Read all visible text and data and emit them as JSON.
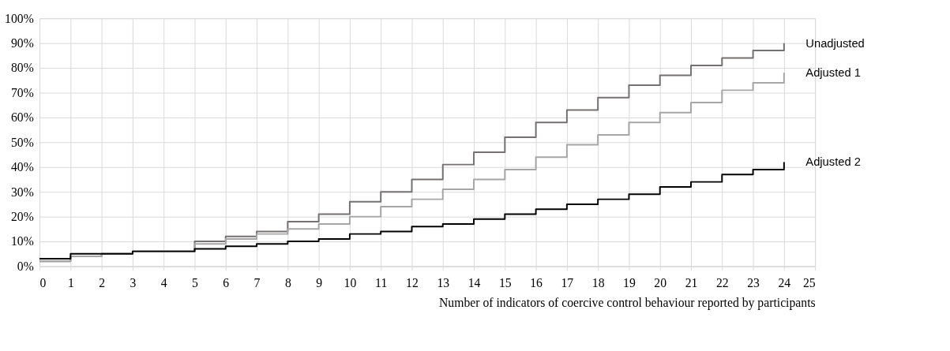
{
  "chart_data": {
    "type": "step",
    "xlabel": "Number of indicators of coercive control behaviour reported by participants",
    "x": [
      0,
      1,
      2,
      3,
      4,
      5,
      6,
      7,
      8,
      9,
      10,
      11,
      12,
      13,
      14,
      15,
      16,
      17,
      18,
      19,
      20,
      21,
      22,
      23,
      24
    ],
    "series": [
      {
        "name": "Unadjusted",
        "color": "#767171",
        "values": [
          2,
          4,
          5,
          6,
          6,
          10,
          12,
          14,
          18,
          21,
          26,
          30,
          35,
          41,
          46,
          52,
          58,
          63,
          68,
          73,
          77,
          81,
          84,
          87,
          90
        ]
      },
      {
        "name": "Adjusted 1",
        "color": "#a6a6a6",
        "values": [
          2,
          4,
          5,
          6,
          6,
          9,
          11,
          13,
          15,
          17,
          20,
          24,
          27,
          31,
          35,
          39,
          44,
          49,
          53,
          58,
          62,
          66,
          71,
          74,
          78
        ]
      },
      {
        "name": "Adjusted 2",
        "color": "#000000",
        "values": [
          3,
          5,
          5,
          6,
          6,
          7,
          8,
          9,
          10,
          11,
          13,
          14,
          16,
          17,
          19,
          21,
          23,
          25,
          27,
          29,
          32,
          34,
          37,
          39,
          42
        ]
      }
    ],
    "xlim": [
      0,
      25
    ],
    "xticks": [
      0,
      1,
      2,
      3,
      4,
      5,
      6,
      7,
      8,
      9,
      10,
      11,
      12,
      13,
      14,
      15,
      16,
      17,
      18,
      19,
      20,
      21,
      22,
      23,
      24,
      25
    ],
    "ylim": [
      0,
      100
    ],
    "yticks": [
      {
        "value": 0,
        "label": "0%"
      },
      {
        "value": 10,
        "label": "10%"
      },
      {
        "value": 20,
        "label": "20%"
      },
      {
        "value": 30,
        "label": "30%"
      },
      {
        "value": 40,
        "label": "40%"
      },
      {
        "value": 50,
        "label": "50%"
      },
      {
        "value": 60,
        "label": "60%"
      },
      {
        "value": 70,
        "label": "70%"
      },
      {
        "value": 80,
        "label": "80%"
      },
      {
        "value": 90,
        "label": "90%"
      },
      {
        "value": 100,
        "label": "100%"
      }
    ],
    "grid": true,
    "line_style": "solid",
    "marker": "none"
  }
}
